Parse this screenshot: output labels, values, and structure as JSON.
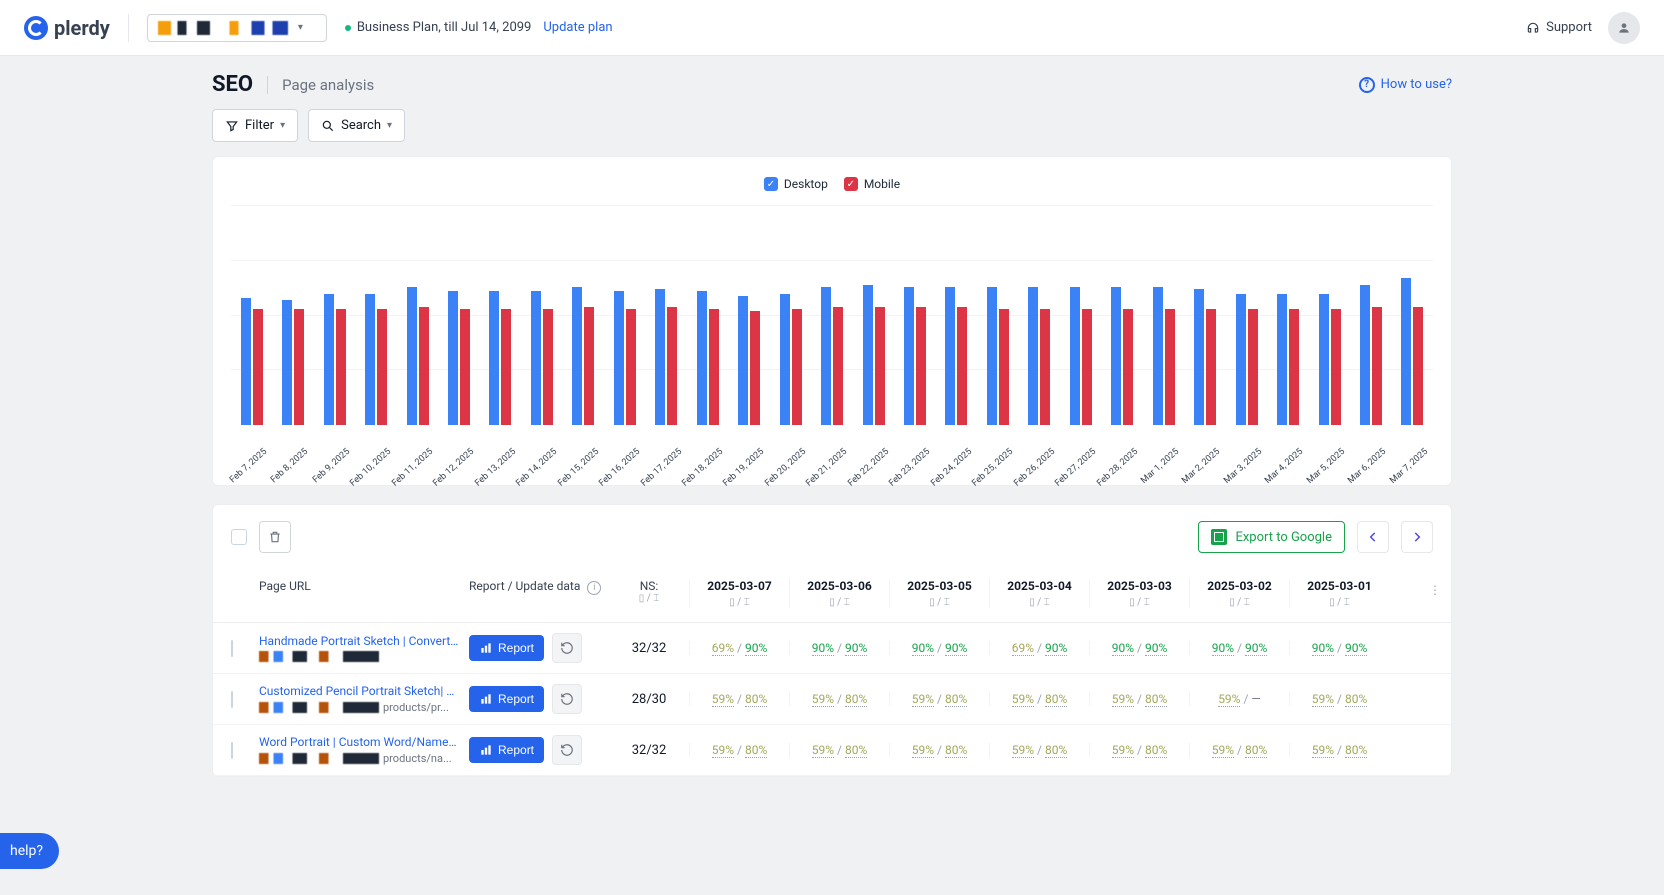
{
  "brand": "plerdy",
  "plan_text": "Business Plan, till Jul 14, 2099",
  "update_plan": "Update plan",
  "support": "Support",
  "page_title": "SEO",
  "page_subtitle": "Page analysis",
  "how_to_use": "How to use?",
  "filter_label": "Filter",
  "search_label": "Search",
  "export_label": "Export to Google",
  "help_label": " help?",
  "chart": {
    "type": "bar",
    "legend": {
      "desktop": "Desktop",
      "mobile": "Mobile"
    },
    "colors": {
      "desktop": "#3b82f6",
      "mobile": "#dc3545",
      "grid": "#f1f3f5",
      "background": "#ffffff"
    },
    "ylim": [
      0,
      100
    ],
    "gridlines": [
      25,
      50,
      75,
      100
    ],
    "categories": [
      "Feb 7, 2025",
      "Feb 8, 2025",
      "Feb 9, 2025",
      "Feb 10, 2025",
      "Feb 11, 2025",
      "Feb 12, 2025",
      "Feb 13, 2025",
      "Feb 14, 2025",
      "Feb 15, 2025",
      "Feb 16, 2025",
      "Feb 17, 2025",
      "Feb 18, 2025",
      "Feb 19, 2025",
      "Feb 20, 2025",
      "Feb 21, 2025",
      "Feb 22, 2025",
      "Feb 23, 2025",
      "Feb 24, 2025",
      "Feb 25, 2025",
      "Feb 26, 2025",
      "Feb 27, 2025",
      "Feb 28, 2025",
      "Mar 1, 2025",
      "Mar 2, 2025",
      "Mar 3, 2025",
      "Mar 4, 2025",
      "Mar 5, 2025",
      "Mar 6, 2025",
      "Mar 7, 2025"
    ],
    "desktop_values": [
      58,
      57,
      60,
      60,
      63,
      61,
      61,
      61,
      63,
      61,
      62,
      61,
      59,
      60,
      63,
      64,
      63,
      63,
      63,
      63,
      63,
      63,
      63,
      62,
      60,
      60,
      60,
      64,
      67
    ],
    "mobile_values": [
      53,
      53,
      53,
      53,
      54,
      53,
      53,
      53,
      54,
      53,
      54,
      53,
      52,
      53,
      54,
      54,
      54,
      54,
      53,
      53,
      53,
      53,
      53,
      53,
      53,
      53,
      53,
      54,
      54
    ]
  },
  "table": {
    "col_page_url": "Page URL",
    "col_report": "Report / Update data",
    "col_ns": "NS:",
    "report_btn": "Report",
    "date_cols": [
      "2025-03-07",
      "2025-03-06",
      "2025-03-05",
      "2025-03-04",
      "2025-03-03",
      "2025-03-02",
      "2025-03-01"
    ],
    "rows": [
      {
        "title": "Handmade Portrait Sketch | Convert P...",
        "url_tail": "",
        "ns": "32/32",
        "scores": [
          [
            "69%",
            "90%"
          ],
          [
            "90%",
            "90%"
          ],
          [
            "90%",
            "90%"
          ],
          [
            "69%",
            "90%"
          ],
          [
            "90%",
            "90%"
          ],
          [
            "90%",
            "90%"
          ],
          [
            "90%",
            "90%"
          ]
        ]
      },
      {
        "title": "Customized Pencil Portrait Sketch| C...",
        "url_tail": "products/pr...",
        "ns": "28/30",
        "scores": [
          [
            "59%",
            "80%"
          ],
          [
            "59%",
            "80%"
          ],
          [
            "59%",
            "80%"
          ],
          [
            "59%",
            "80%"
          ],
          [
            "59%",
            "80%"
          ],
          [
            "59%",
            "—"
          ],
          [
            "59%",
            "80%"
          ]
        ]
      },
      {
        "title": "Word Portrait | Custom Word/Name P...",
        "url_tail": "products/na...",
        "ns": "32/32",
        "scores": [
          [
            "59%",
            "80%"
          ],
          [
            "59%",
            "80%"
          ],
          [
            "59%",
            "80%"
          ],
          [
            "59%",
            "80%"
          ],
          [
            "59%",
            "80%"
          ],
          [
            "59%",
            "80%"
          ],
          [
            "59%",
            "80%"
          ]
        ]
      }
    ]
  }
}
